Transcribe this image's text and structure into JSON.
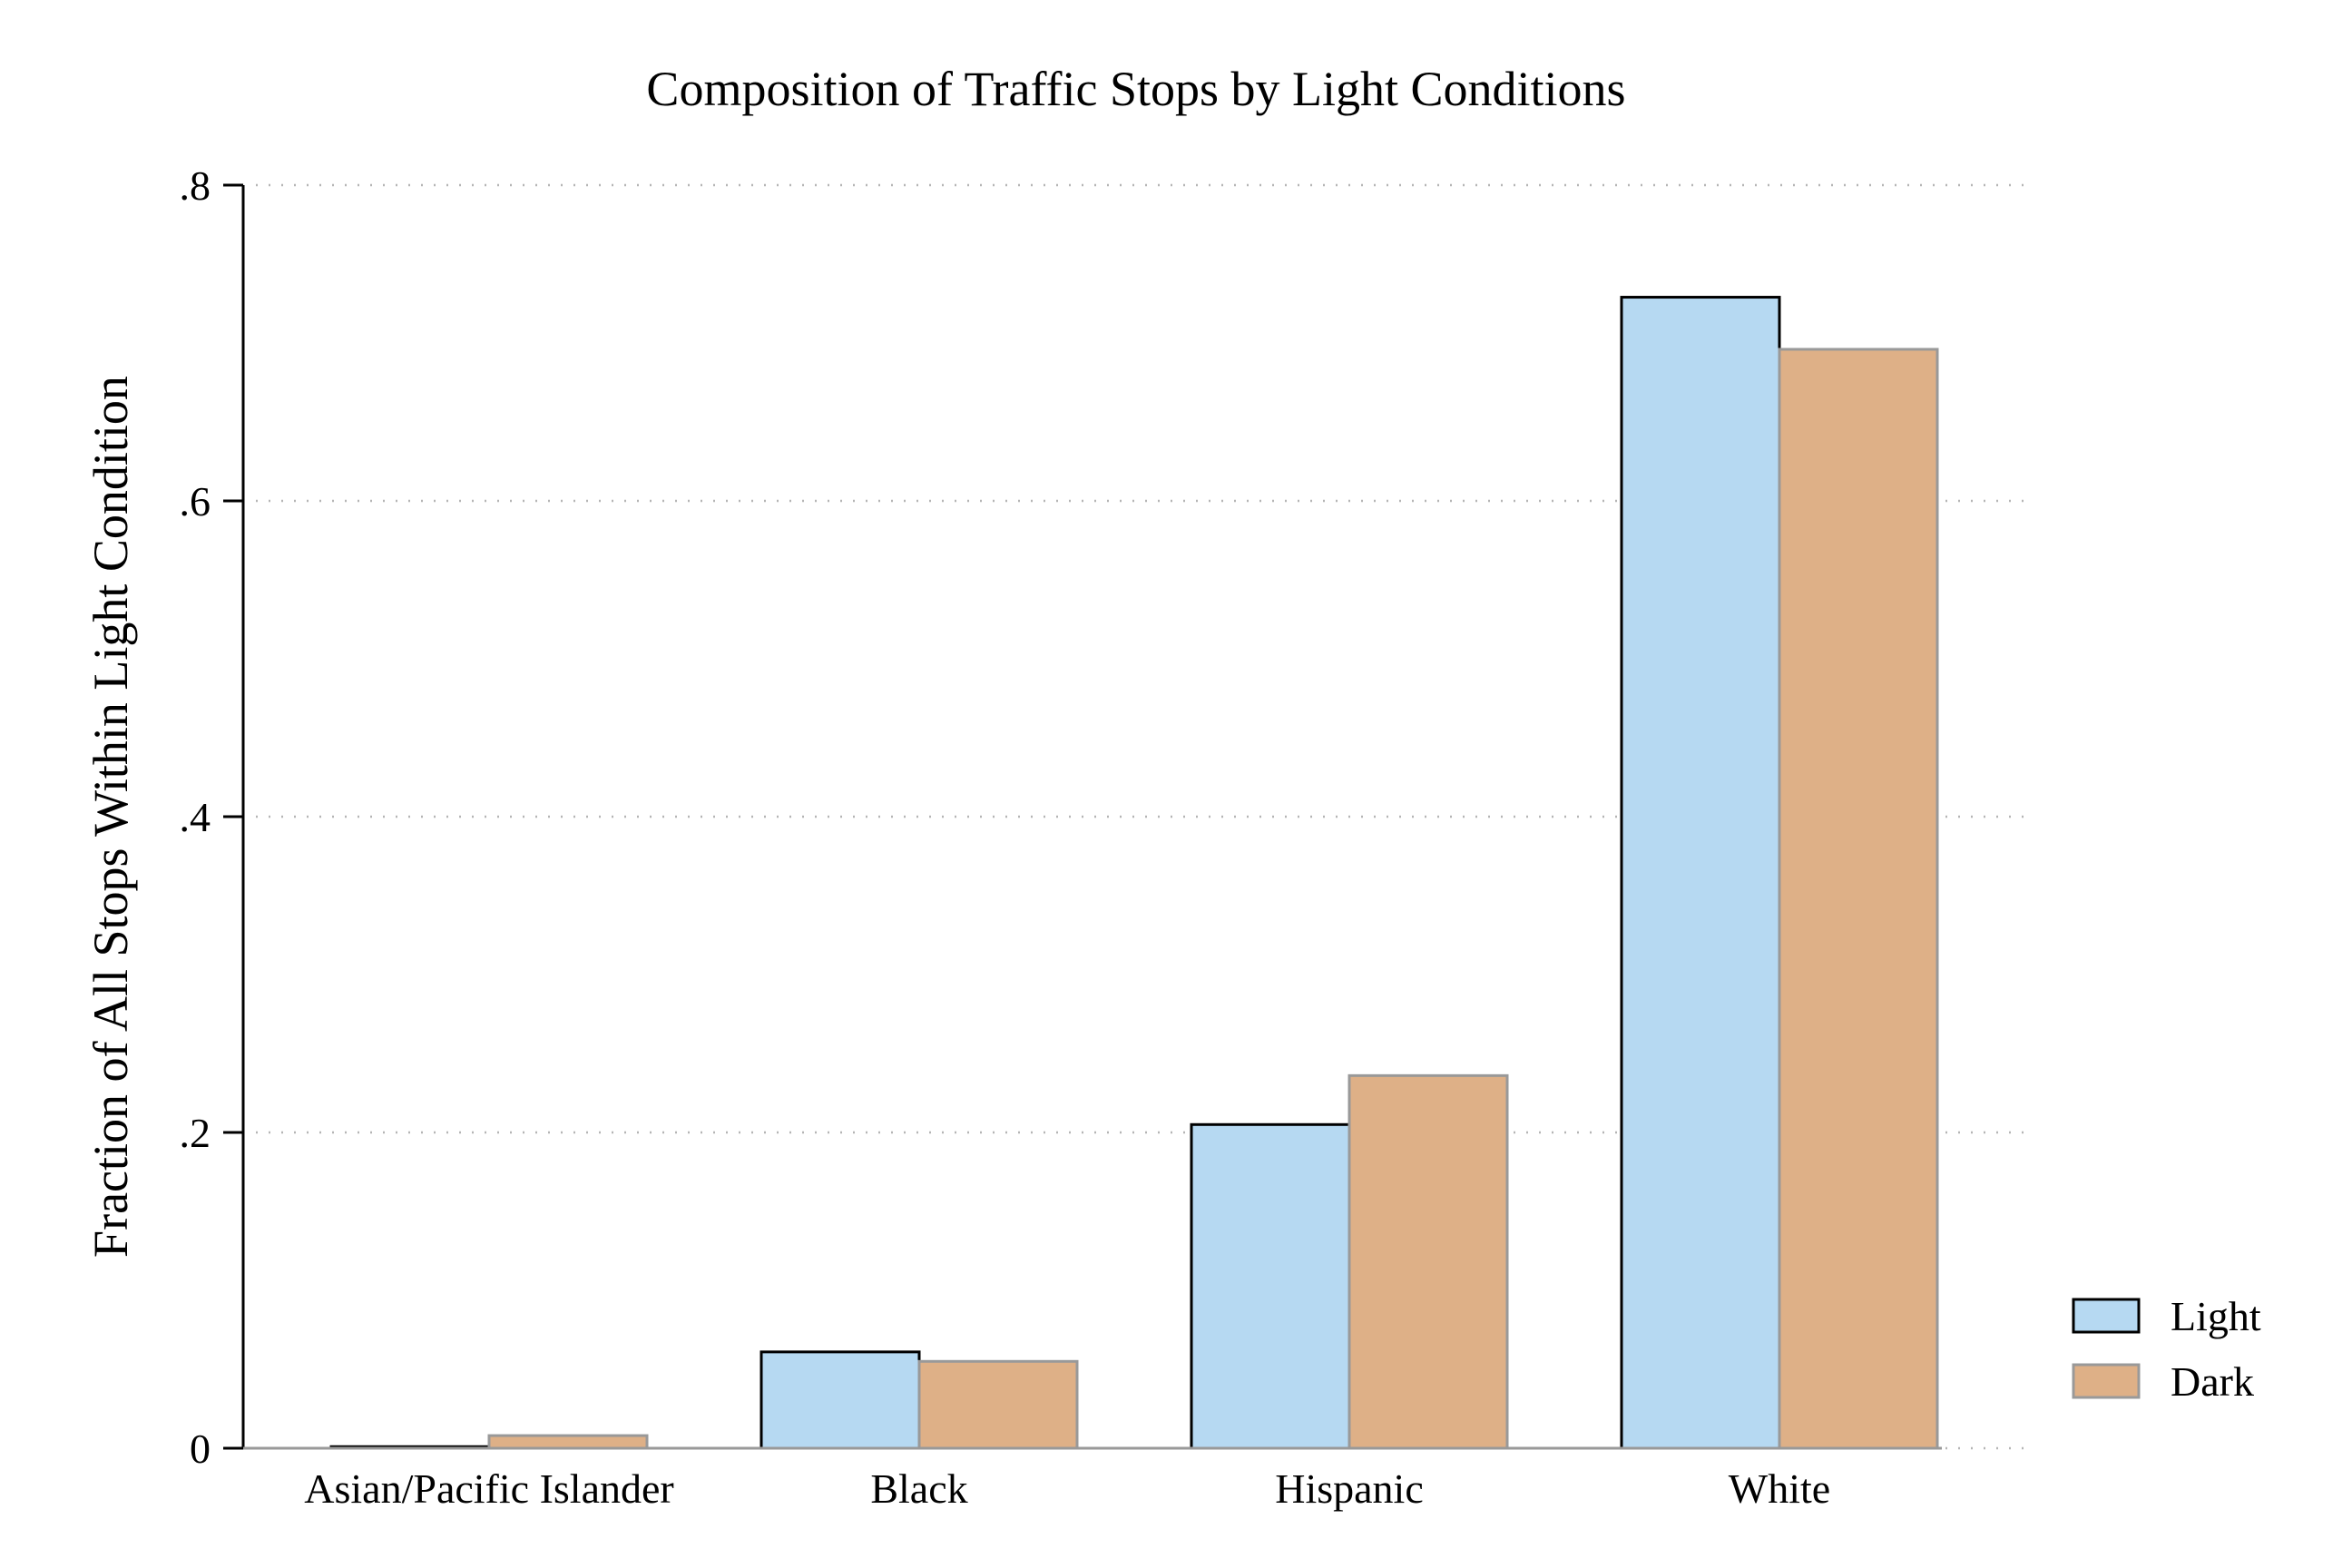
{
  "chart_data": {
    "type": "bar",
    "title": "Composition of Traffic Stops by Light Conditions",
    "xlabel": "",
    "ylabel": "Fraction of All Stops Within Light Condition",
    "categories": [
      "Asian/Pacific Islander",
      "Black",
      "Hispanic",
      "White"
    ],
    "series": [
      {
        "name": "Light",
        "values": [
          0.001,
          0.061,
          0.205,
          0.729
        ],
        "color": "#b6d9f2",
        "stroke": "#000000"
      },
      {
        "name": "Dark",
        "values": [
          0.008,
          0.055,
          0.236,
          0.696
        ],
        "color": "#deb087",
        "stroke": "#999999"
      }
    ],
    "ylim": [
      0,
      0.8
    ],
    "yticks": [
      0,
      0.2,
      0.4,
      0.6,
      0.8
    ],
    "ytick_labels": [
      "0",
      ".2",
      ".4",
      ".6",
      ".8"
    ],
    "grid": "horizontal dotted",
    "legend_position": "right"
  }
}
